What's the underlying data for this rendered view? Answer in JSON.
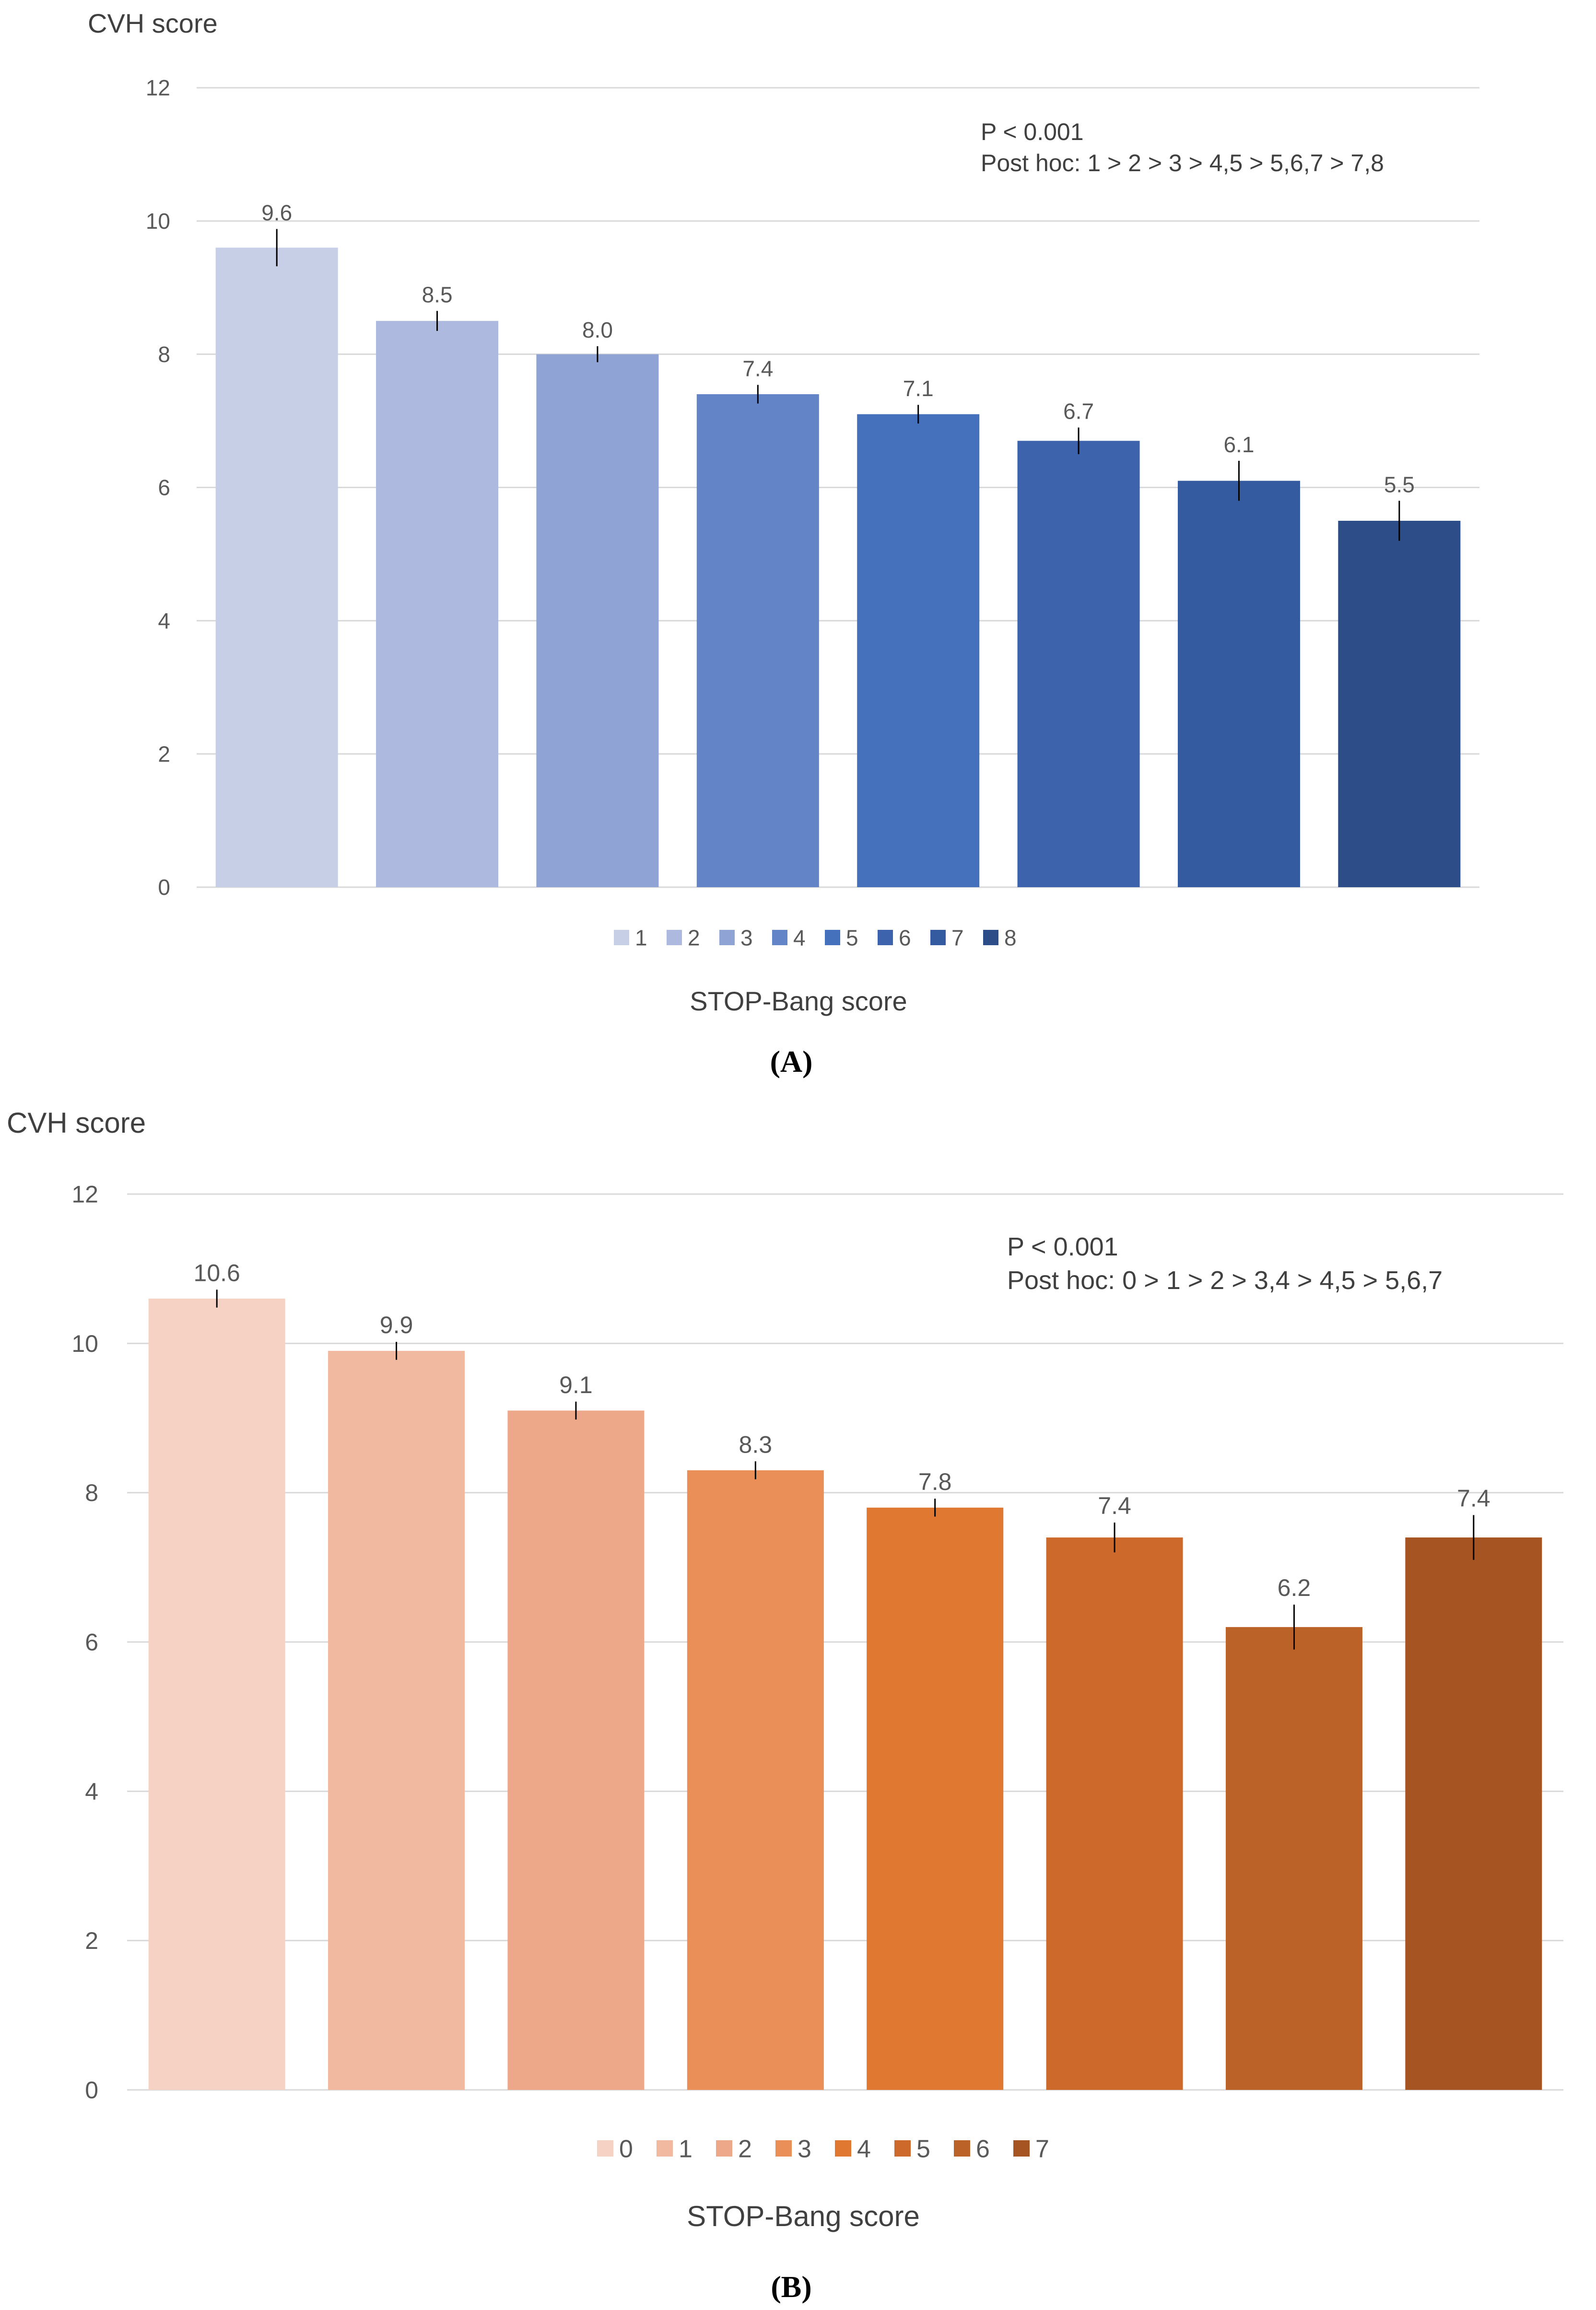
{
  "chart_data": [
    {
      "type": "bar",
      "panel_label": "(A)",
      "ylabel": "CVH score",
      "xlabel": "STOP-Bang score",
      "ylim": [
        0,
        12
      ],
      "yticks": [
        0,
        2,
        4,
        6,
        8,
        10,
        12
      ],
      "grid": true,
      "categories": [
        "1",
        "2",
        "3",
        "4",
        "5",
        "6",
        "7",
        "8"
      ],
      "values": [
        9.6,
        8.5,
        8.0,
        7.4,
        7.1,
        6.7,
        6.1,
        5.5
      ],
      "value_labels": [
        "9.6",
        "8.5",
        "8.0",
        "7.4",
        "7.1",
        "6.7",
        "6.1",
        "5.5"
      ],
      "errors": [
        0.28,
        0.15,
        0.12,
        0.14,
        0.14,
        0.2,
        0.3,
        0.3
      ],
      "colors": [
        "#c7cfe6",
        "#adb9df",
        "#8fa3d4",
        "#6484c8",
        "#4570bb",
        "#3d63ac",
        "#345a9f",
        "#2d4d88"
      ],
      "legend": [
        "1",
        "2",
        "3",
        "4",
        "5",
        "6",
        "7",
        "8"
      ],
      "legend_position": "bottom",
      "annotation": [
        "P  < 0.001",
        "Post hoc: 1  >  2  >  3  >  4,5  >  5,6,7  >  7,8"
      ]
    },
    {
      "type": "bar",
      "panel_label": "(B)",
      "ylabel": "CVH score",
      "xlabel": "STOP-Bang score",
      "ylim": [
        0,
        12
      ],
      "yticks": [
        0,
        2,
        4,
        6,
        8,
        10,
        12
      ],
      "grid": true,
      "categories": [
        "0",
        "1",
        "2",
        "3",
        "4",
        "5",
        "6",
        "7"
      ],
      "values": [
        10.6,
        9.9,
        9.1,
        8.3,
        7.8,
        7.4,
        6.2,
        7.4
      ],
      "value_labels": [
        "10.6",
        "9.9",
        "9.1",
        "8.3",
        "7.8",
        "7.4",
        "6.2",
        "7.4"
      ],
      "errors": [
        0.12,
        0.12,
        0.12,
        0.12,
        0.12,
        0.2,
        0.3,
        0.3
      ],
      "colors": [
        "#f5d2c4",
        "#f1b99f",
        "#eda789",
        "#e98f57",
        "#e07832",
        "#cd6a2b",
        "#bb6228",
        "#a65522"
      ],
      "legend": [
        "0",
        "1",
        "2",
        "3",
        "4",
        "5",
        "6",
        "7"
      ],
      "legend_position": "bottom",
      "annotation": [
        "P  < 0.001",
        "Post hoc: 0  >  1  >  2  >  3,4  >  4,5  >  5,6,7"
      ]
    }
  ]
}
